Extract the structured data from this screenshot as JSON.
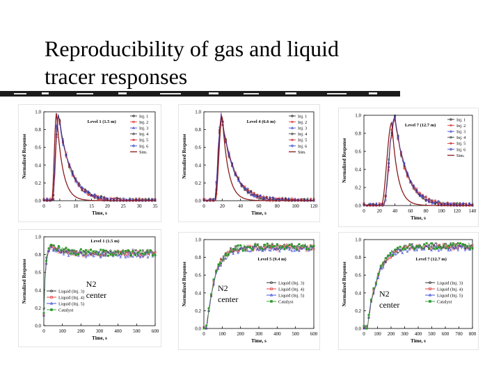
{
  "slide": {
    "title_line1": "Reproducibility of gas and liquid",
    "title_line2": "tracer responses"
  },
  "chart_data": [
    {
      "type": "line",
      "kind": "gas",
      "title": "Level 1 (1.5 m)",
      "xlabel": "Time, s",
      "ylabel": "Normalized Response",
      "xlim": [
        0,
        35
      ],
      "ylim": [
        0,
        1.0
      ],
      "xticks": [
        "0",
        "5",
        "10",
        "15",
        "20",
        "25",
        "30",
        "35"
      ],
      "yticks": [
        "0.0",
        "0.2",
        "0.4",
        "0.6",
        "0.8",
        "1.0"
      ],
      "legend_position": "top-right",
      "series": [
        {
          "name": "Inj. 1",
          "color": "#1a1a1a",
          "marker": "circle"
        },
        {
          "name": "Inj. 2",
          "color": "#e03030",
          "marker": "square"
        },
        {
          "name": "Inj. 3",
          "color": "#3040d0",
          "marker": "triangle"
        },
        {
          "name": "Inj. 4",
          "color": "#2a2a2a",
          "marker": "circle"
        },
        {
          "name": "Inj. 5",
          "color": "#d02020",
          "marker": "circle"
        },
        {
          "name": "Inj. 6",
          "color": "#2030c0",
          "marker": "circle"
        },
        {
          "name": "Sim.",
          "color": "#8b1a1a",
          "marker": "none"
        }
      ],
      "peak": {
        "exp_x": 4.5,
        "sim_x": 4.0,
        "exp_y": 0.98,
        "sim_y": 0.99
      }
    },
    {
      "type": "line",
      "kind": "gas",
      "title": "Level 4 (6.6 m)",
      "xlabel": "Time, s",
      "ylabel": "Normalized Response",
      "xlim": [
        0,
        120
      ],
      "ylim": [
        0,
        1.0
      ],
      "xticks": [
        "0",
        "20",
        "40",
        "60",
        "80",
        "100",
        "120"
      ],
      "yticks": [
        "0.0",
        "0.2",
        "0.4",
        "0.6",
        "0.8",
        "1.0"
      ],
      "legend_position": "top-right",
      "series": [
        {
          "name": "Inj. 1",
          "color": "#1a1a1a",
          "marker": "circle"
        },
        {
          "name": "Inj. 2",
          "color": "#e03030",
          "marker": "square"
        },
        {
          "name": "Inj. 3",
          "color": "#3040d0",
          "marker": "triangle"
        },
        {
          "name": "Inj. 4",
          "color": "#2a2a2a",
          "marker": "circle"
        },
        {
          "name": "Inj. 5",
          "color": "#d02020",
          "marker": "circle"
        },
        {
          "name": "Inj. 6",
          "color": "#2030c0",
          "marker": "circle"
        },
        {
          "name": "Sim.",
          "color": "#8b1a1a",
          "marker": "none"
        }
      ],
      "peak": {
        "exp_x": 19,
        "sim_x": 20,
        "exp_y": 0.98,
        "sim_y": 0.96
      }
    },
    {
      "type": "line",
      "kind": "gas",
      "title": "Level 7 (12.7 m)",
      "xlabel": "Time, s",
      "ylabel": "Normalized Response",
      "xlim": [
        0,
        140
      ],
      "ylim": [
        0,
        1.0
      ],
      "xticks": [
        "0",
        "20",
        "40",
        "60",
        "80",
        "100",
        "120",
        "140"
      ],
      "yticks": [
        "0.0",
        "0.2",
        "0.4",
        "0.6",
        "0.8",
        "1.0"
      ],
      "legend_position": "top-right",
      "series": [
        {
          "name": "Inj. 1",
          "color": "#1a1a1a",
          "marker": "circle"
        },
        {
          "name": "Inj. 2",
          "color": "#e03030",
          "marker": "square"
        },
        {
          "name": "Inj. 3",
          "color": "#3040d0",
          "marker": "triangle"
        },
        {
          "name": "Inj. 4",
          "color": "#2a2a2a",
          "marker": "circle"
        },
        {
          "name": "Inj. 5",
          "color": "#d02020",
          "marker": "circle"
        },
        {
          "name": "Inj. 6",
          "color": "#2030c0",
          "marker": "circle"
        },
        {
          "name": "Sim.",
          "color": "#8b1a1a",
          "marker": "none"
        }
      ],
      "peak": {
        "exp_x": 40,
        "sim_x": 36,
        "exp_y": 0.98,
        "sim_y": 0.92
      }
    },
    {
      "type": "line",
      "kind": "liquid",
      "title": "Level 1 (1.5 m)",
      "xlabel": "Time, s",
      "ylabel": "Normalized Response",
      "xlim": [
        0,
        600
      ],
      "ylim": [
        0,
        1.0
      ],
      "xticks": [
        "0",
        "100",
        "200",
        "300",
        "400",
        "500",
        "600"
      ],
      "yticks": [
        "0.0",
        "0.2",
        "0.4",
        "0.6",
        "0.8",
        "1.0"
      ],
      "legend_position": "bottom-left",
      "annotation": "N2\ncenter",
      "series": [
        {
          "name": "Liquid (Inj. 3)",
          "color": "#1a1a1a",
          "marker": "circle"
        },
        {
          "name": "Liquid (Inj. 4)",
          "color": "#e03030",
          "marker": "square"
        },
        {
          "name": "Liquid (Inj. 5)",
          "color": "#3040d0",
          "marker": "triangle"
        },
        {
          "name": "Catalyst",
          "color": "#2a9a2a",
          "marker": "square"
        }
      ],
      "rise": {
        "start": 0,
        "tau": 10,
        "peak": 0.98,
        "plateau": 0.82
      }
    },
    {
      "type": "line",
      "kind": "liquid",
      "title": "Level 5 (9.4 m)",
      "xlabel": "Time, s",
      "ylabel": "Normalized Response",
      "xlim": [
        0,
        600
      ],
      "ylim": [
        0,
        1.0
      ],
      "xticks": [
        "0",
        "100",
        "200",
        "300",
        "400",
        "500",
        "600"
      ],
      "yticks": [
        "0.0",
        "0.2",
        "0.4",
        "0.6",
        "0.8",
        "1.0"
      ],
      "legend_position": "bottom-right",
      "annotation": "N2\ncenter",
      "series": [
        {
          "name": "Liquid (Inj. 3)",
          "color": "#1a1a1a",
          "marker": "circle"
        },
        {
          "name": "Liquid (Inj. 4)",
          "color": "#e03030",
          "marker": "square"
        },
        {
          "name": "Liquid (Inj. 5)",
          "color": "#3040d0",
          "marker": "triangle"
        },
        {
          "name": "Catalyst",
          "color": "#2a9a2a",
          "marker": "square"
        }
      ],
      "rise": {
        "start": 15,
        "tau": 45,
        "plateau": 0.92
      }
    },
    {
      "type": "line",
      "kind": "liquid",
      "title": "Level 7 (12.7 m)",
      "xlabel": "Time, s",
      "ylabel": "Normalized Response",
      "xlim": [
        0,
        800
      ],
      "ylim": [
        0,
        1.0
      ],
      "xticks": [
        "0",
        "100",
        "200",
        "300",
        "400",
        "500",
        "600",
        "700",
        "800"
      ],
      "yticks": [
        "0.0",
        "0.2",
        "0.4",
        "0.6",
        "0.8",
        "1.0"
      ],
      "legend_position": "bottom-right",
      "annotation": "N2\ncenter",
      "series": [
        {
          "name": "Liquid (Inj. 3)",
          "color": "#1a1a1a",
          "marker": "circle"
        },
        {
          "name": "Liquid (Inj. 4)",
          "color": "#e03030",
          "marker": "square"
        },
        {
          "name": "Liquid (Inj. 5)",
          "color": "#3040d0",
          "marker": "triangle"
        },
        {
          "name": "Catalyst",
          "color": "#2a9a2a",
          "marker": "square"
        }
      ],
      "rise": {
        "start": 25,
        "tau": 75,
        "plateau": 0.93
      }
    }
  ]
}
